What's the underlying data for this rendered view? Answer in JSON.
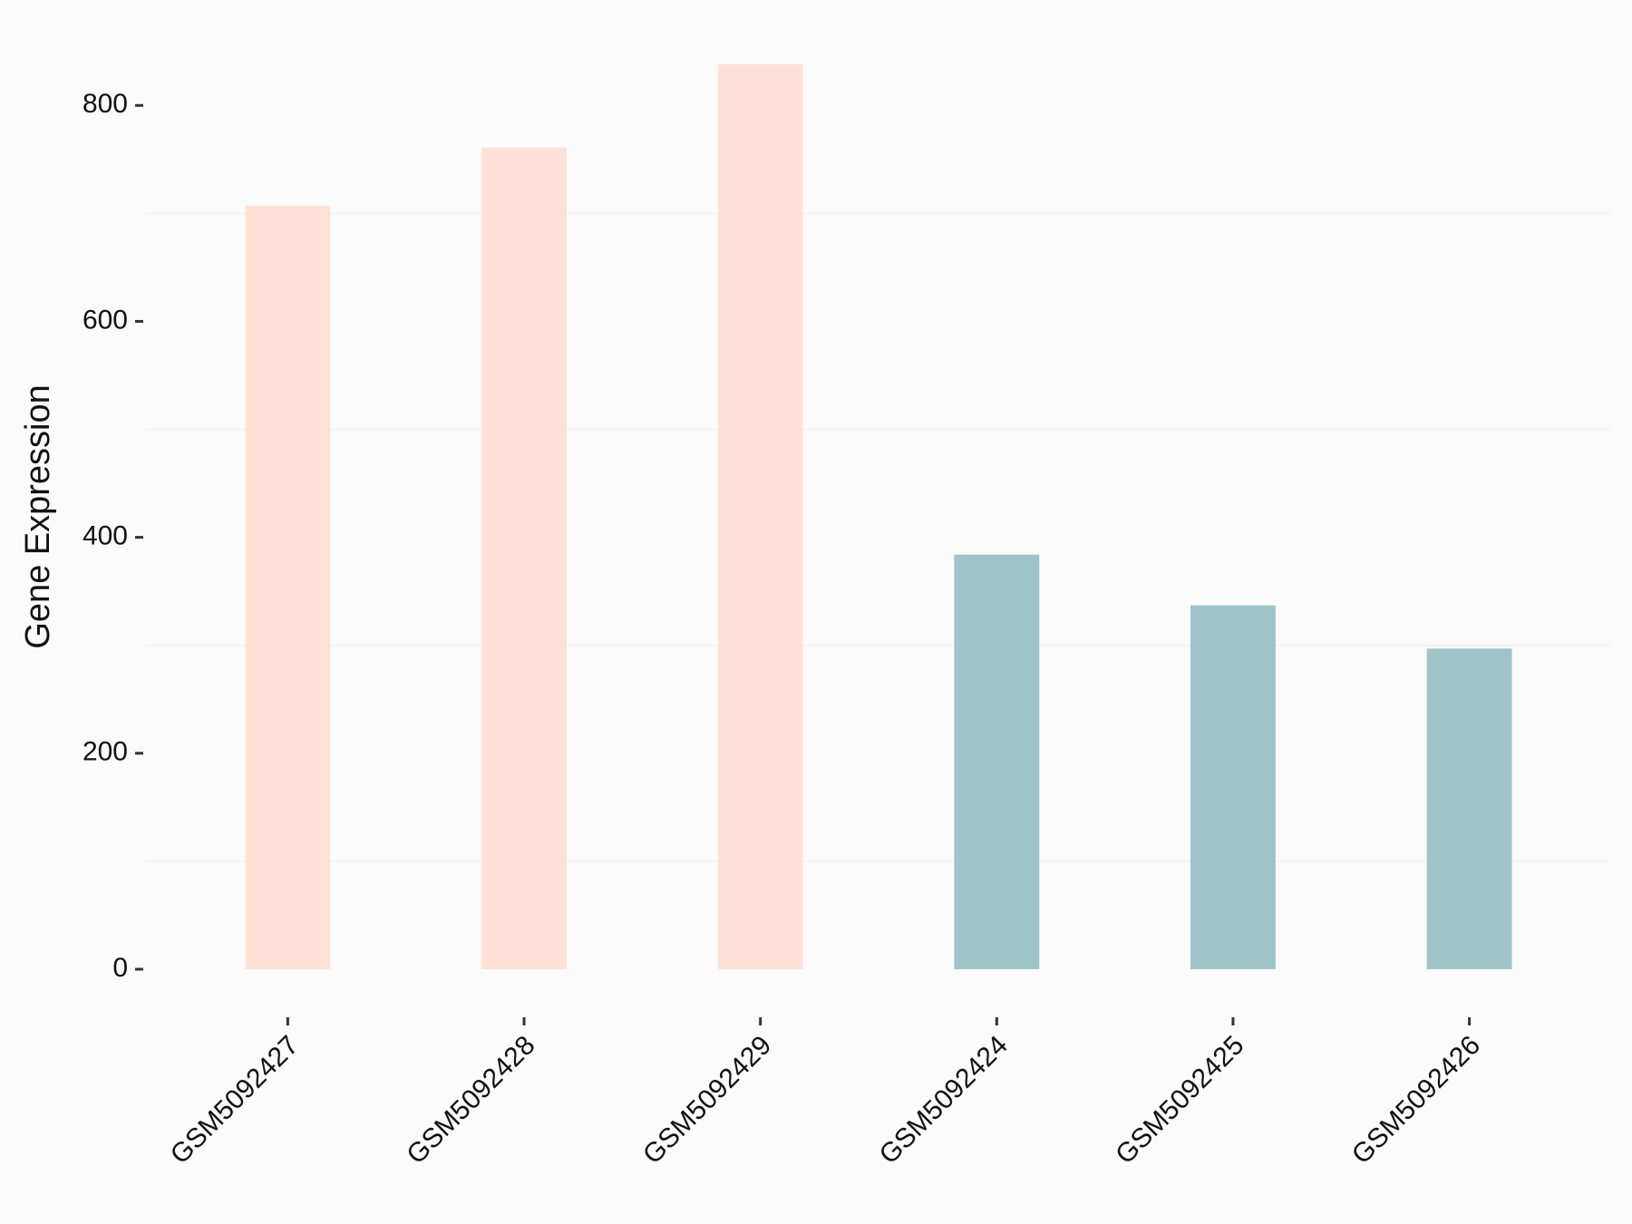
{
  "chart_data": {
    "type": "bar",
    "y_label": "Gene Expression",
    "categories": [
      "GSM5092427",
      "GSM5092428",
      "GSM5092429",
      "GSM5092424",
      "GSM5092425",
      "GSM5092426"
    ],
    "values": [
      707,
      761,
      838,
      384,
      337,
      297
    ],
    "colors": [
      "#ffe1d8",
      "#ffe1d8",
      "#ffe1d8",
      "#9fc4c8",
      "#9fc4c8",
      "#9fc4c8"
    ],
    "ylim": [
      -42,
      880
    ],
    "yticks": [
      0,
      200,
      400,
      600,
      800
    ],
    "minor_yticks": [
      100,
      300,
      500,
      700
    ],
    "grid": true
  }
}
